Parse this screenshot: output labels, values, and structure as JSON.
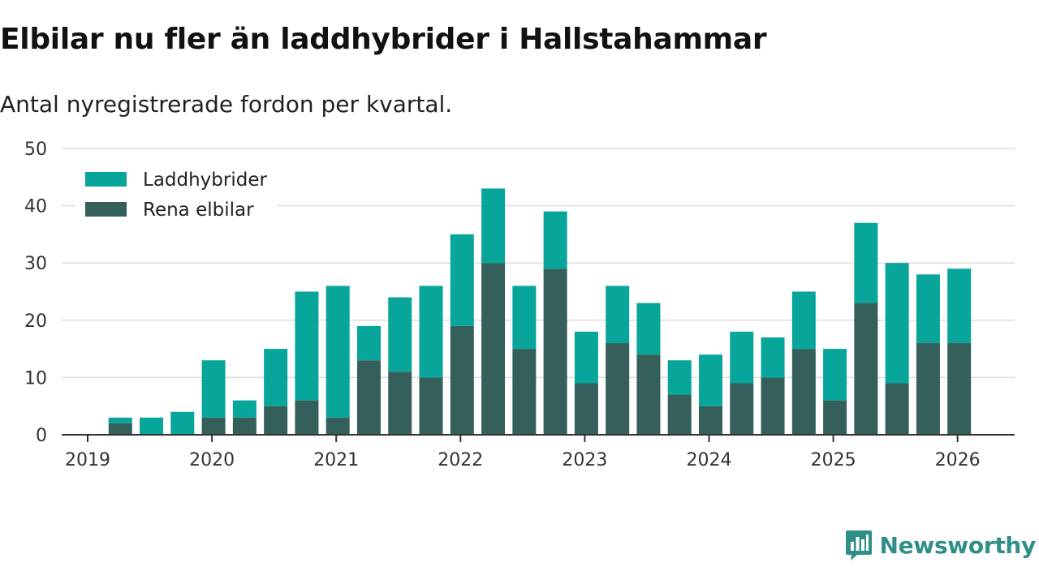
{
  "title": "Elbilar nu fler än laddhybrider i Hallstahammar",
  "subtitle": "Antal nyregistrerade fordon per kvartal.",
  "brand": {
    "name": "Newsworthy",
    "icon": "newsworthy-logo-icon"
  },
  "colors": {
    "laddhybrider": "#07a59a",
    "elbilar": "#345f5a",
    "grid": "#dcdcdc",
    "axis": "#333333",
    "brand": "#2f8f88"
  },
  "chart_data": {
    "type": "bar",
    "stacked": true,
    "title": "Elbilar nu fler än laddhybrider i Hallstahammar",
    "subtitle": "Antal nyregistrerade fordon per kvartal.",
    "xlabel": "",
    "ylabel": "",
    "ylim": [
      0,
      50
    ],
    "yticks": [
      0,
      10,
      20,
      30,
      40,
      50
    ],
    "xticks": [
      "2019",
      "2020",
      "2021",
      "2022",
      "2023",
      "2024",
      "2025",
      "2026"
    ],
    "categories": [
      "2019 Q2",
      "2019 Q3",
      "2019 Q4",
      "2020 Q1",
      "2020 Q2",
      "2020 Q3",
      "2020 Q4",
      "2021 Q1",
      "2021 Q2",
      "2021 Q3",
      "2021 Q4",
      "2022 Q1",
      "2022 Q2",
      "2022 Q3",
      "2022 Q4",
      "2023 Q1",
      "2023 Q2",
      "2023 Q3",
      "2023 Q4",
      "2024 Q1",
      "2024 Q2",
      "2024 Q3",
      "2024 Q4",
      "2025 Q1",
      "2025 Q2",
      "2025 Q3",
      "2025 Q4",
      "2026 Q1"
    ],
    "legend_position": "top-left",
    "grid": true,
    "series": [
      {
        "name": "Rena elbilar",
        "values": [
          2,
          0,
          0,
          3,
          3,
          5,
          6,
          3,
          13,
          11,
          10,
          19,
          30,
          15,
          29,
          9,
          16,
          14,
          7,
          5,
          9,
          10,
          15,
          6,
          23,
          9,
          16,
          16
        ]
      },
      {
        "name": "Laddhybrider",
        "values": [
          1,
          3,
          4,
          10,
          3,
          10,
          19,
          23,
          6,
          13,
          16,
          16,
          13,
          11,
          10,
          9,
          10,
          9,
          6,
          9,
          9,
          7,
          10,
          9,
          14,
          21,
          12,
          13
        ]
      }
    ]
  }
}
